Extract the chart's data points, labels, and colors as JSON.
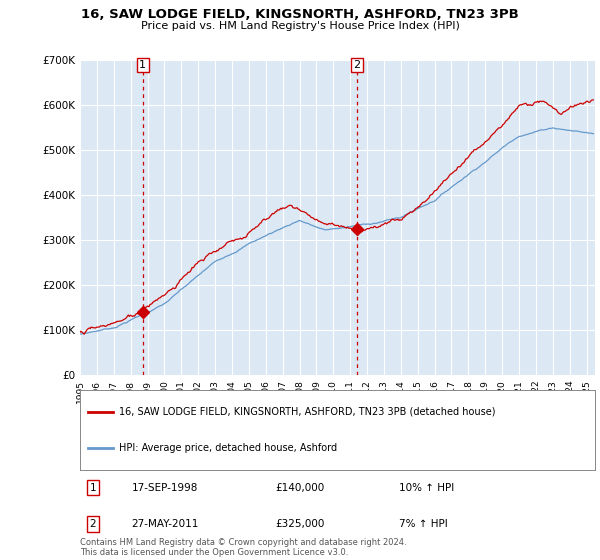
{
  "title": "16, SAW LODGE FIELD, KINGSNORTH, ASHFORD, TN23 3PB",
  "subtitle": "Price paid vs. HM Land Registry's House Price Index (HPI)",
  "ylim": [
    0,
    700000
  ],
  "yticks": [
    0,
    100000,
    200000,
    300000,
    400000,
    500000,
    600000,
    700000
  ],
  "ytick_labels": [
    "£0",
    "£100K",
    "£200K",
    "£300K",
    "£400K",
    "£500K",
    "£600K",
    "£700K"
  ],
  "sale1_date": 1998.72,
  "sale1_price": 140000,
  "sale2_date": 2011.4,
  "sale2_price": 325000,
  "legend_entries": [
    {
      "label": "16, SAW LODGE FIELD, KINGSNORTH, ASHFORD, TN23 3PB (detached house)",
      "color": "#cc0000"
    },
    {
      "label": "HPI: Average price, detached house, Ashford",
      "color": "#6699cc"
    }
  ],
  "table": [
    {
      "num": "1",
      "date": "17-SEP-1998",
      "price": "£140,000",
      "hpi": "10% ↑ HPI"
    },
    {
      "num": "2",
      "date": "27-MAY-2011",
      "price": "£325,000",
      "hpi": "7% ↑ HPI"
    }
  ],
  "footnote": "Contains HM Land Registry data © Crown copyright and database right 2024.\nThis data is licensed under the Open Government Licence v3.0.",
  "bg_color": "#ffffff",
  "plot_bg_color": "#dce9f5",
  "grid_color": "#ffffff",
  "shade_color": "#dce9f5",
  "hpi_line_color": "#6699cc",
  "price_line_color": "#cc0000",
  "vline_color": "#cc0000",
  "xlim_start": 1995,
  "xlim_end": 2025.5
}
